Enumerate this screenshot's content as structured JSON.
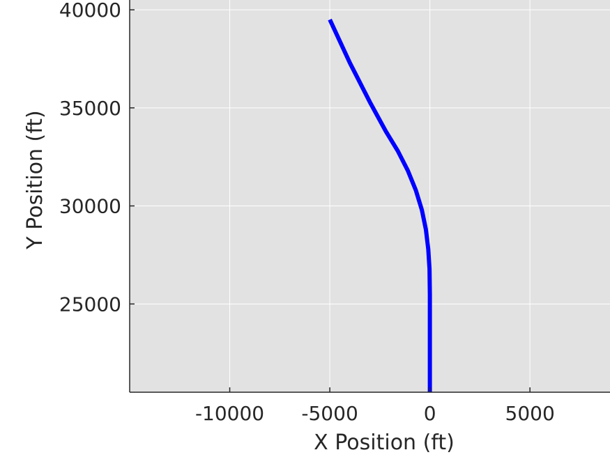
{
  "chart_data": {
    "type": "line",
    "xlabel": "X Position (ft)",
    "ylabel": "Y Position (ft)",
    "xlim": [
      -15000,
      9000
    ],
    "ylim": [
      20500,
      40500
    ],
    "xticks": [
      -10000,
      -5000,
      0,
      5000
    ],
    "yticks": [
      25000,
      30000,
      35000,
      40000
    ],
    "xtick_labels": [
      "-10000",
      "-5000",
      "0",
      "5000"
    ],
    "ytick_labels": [
      "25000",
      "30000",
      "35000",
      "40000"
    ],
    "grid": true,
    "background_color": "#e2e2e2",
    "grid_color": "#ffffff",
    "series": [
      {
        "color": "#0000ff",
        "x": [
          0,
          0,
          0,
          -20,
          -80,
          -200,
          -400,
          -700,
          -1100,
          -1600,
          -2200,
          -3000,
          -4000,
          -5000
        ],
        "y": [
          20500,
          23000,
          25500,
          26800,
          27800,
          28800,
          29800,
          30800,
          31800,
          32800,
          33800,
          35300,
          37300,
          39500
        ]
      }
    ]
  }
}
